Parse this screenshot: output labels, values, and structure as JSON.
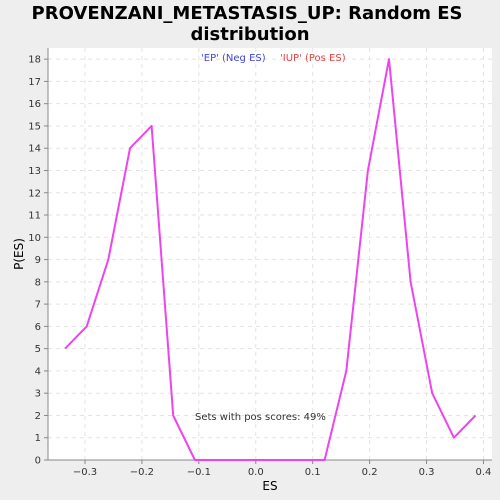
{
  "chart_data": {
    "type": "line",
    "title_line1": "PROVENZANI_METASTASIS_UP: Random ES",
    "title_line2": "distribution",
    "xlabel": "ES",
    "ylabel": "P(ES)",
    "xlim": [
      -0.365,
      0.415
    ],
    "ylim": [
      0,
      18.5
    ],
    "x_ticks": [
      -0.3,
      -0.2,
      -0.1,
      0.0,
      0.1,
      0.2,
      0.3,
      0.4
    ],
    "x_tick_labels": [
      "−0.3",
      "−0.2",
      "−0.1",
      "0.0",
      "0.1",
      "0.2",
      "0.3",
      "0.4"
    ],
    "y_ticks": [
      0,
      1,
      2,
      3,
      4,
      5,
      6,
      7,
      8,
      9,
      10,
      11,
      12,
      13,
      14,
      15,
      16,
      17,
      18
    ],
    "y_tick_labels": [
      "0",
      "1",
      "2",
      "3",
      "4",
      "5",
      "6",
      "7",
      "8",
      "9",
      "10",
      "11",
      "12",
      "13",
      "14",
      "15",
      "16",
      "17",
      "18"
    ],
    "grid": true,
    "legend": [
      {
        "label": "'EP' (Neg ES)",
        "color": "#4444dd"
      },
      {
        "label": "'IUP' (Pos ES)",
        "color": "#dd4444"
      }
    ],
    "annotation": "Sets with pos scores: 49%",
    "series": [
      {
        "color": "#ee44ee",
        "x": [
          -0.335,
          -0.297,
          -0.259,
          -0.221,
          -0.183,
          -0.145,
          -0.107,
          -0.069,
          -0.031,
          0.007,
          0.045,
          0.083,
          0.121,
          0.159,
          0.197,
          0.234,
          0.272,
          0.31,
          0.348,
          0.386
        ],
        "y": [
          5,
          6,
          9,
          14,
          15,
          2,
          0,
          0,
          0,
          0,
          0,
          0,
          0,
          4,
          13,
          18,
          8,
          3,
          1,
          2
        ]
      }
    ]
  }
}
